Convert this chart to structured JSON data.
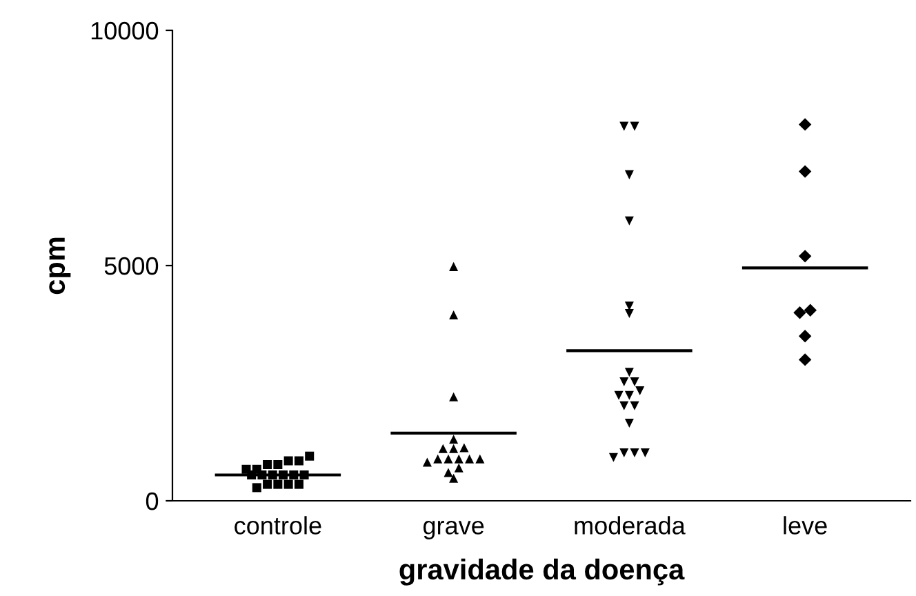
{
  "chart_data": {
    "type": "scatter",
    "xlabel": "gravidade da doença",
    "ylabel": "cpm",
    "categories": [
      "controle",
      "grave",
      "moderada",
      "leve"
    ],
    "ylim": [
      0,
      10000
    ],
    "yticks": [
      0,
      5000,
      10000
    ],
    "grid": false,
    "legend": false,
    "series": [
      {
        "marker": "square",
        "color": "#000000",
        "x": [
          "controle",
          "controle",
          "controle",
          "controle",
          "controle",
          "controle",
          "controle",
          "controle",
          "controle",
          "controle",
          "controle",
          "controle",
          "controle",
          "controle",
          "controle",
          "controle",
          "controle",
          "controle"
        ],
        "values": [
          950,
          770,
          770,
          850,
          850,
          670,
          670,
          550,
          550,
          550,
          550,
          550,
          550,
          350,
          350,
          350,
          350,
          280
        ]
      },
      {
        "marker": "triangle",
        "color": "#000000",
        "x": [
          "grave",
          "grave",
          "grave",
          "grave",
          "grave",
          "grave",
          "grave",
          "grave",
          "grave",
          "grave",
          "grave",
          "grave",
          "grave",
          "grave",
          "grave",
          "grave"
        ],
        "values": [
          4980,
          3950,
          2210,
          1310,
          1110,
          1110,
          1130,
          890,
          890,
          890,
          890,
          890,
          820,
          700,
          600,
          480
        ]
      },
      {
        "marker": "triangle_down",
        "color": "#000000",
        "x": [
          "moderada",
          "moderada",
          "moderada",
          "moderada",
          "moderada",
          "moderada",
          "moderada",
          "moderada",
          "moderada",
          "moderada",
          "moderada",
          "moderada",
          "moderada",
          "moderada",
          "moderada",
          "moderada",
          "moderada",
          "moderada",
          "moderada"
        ],
        "values": [
          7960,
          7960,
          6930,
          5950,
          4140,
          3980,
          2730,
          2530,
          2530,
          2340,
          2240,
          2240,
          2020,
          2020,
          1650,
          1020,
          1020,
          1020,
          920
        ]
      },
      {
        "marker": "diamond",
        "color": "#000000",
        "x": [
          "leve",
          "leve",
          "leve",
          "leve",
          "leve",
          "leve",
          "leve"
        ],
        "values": [
          8000,
          7000,
          5200,
          4050,
          4000,
          3500,
          3000
        ]
      }
    ],
    "ref_lines": [
      {
        "axis": "y",
        "value": 550,
        "color": "#000000"
      },
      {
        "axis": "y",
        "value": 1440,
        "color": "#000000"
      },
      {
        "axis": "y",
        "value": 3190,
        "color": "#000000"
      },
      {
        "axis": "y",
        "value": 4950,
        "color": "#000000"
      }
    ]
  }
}
